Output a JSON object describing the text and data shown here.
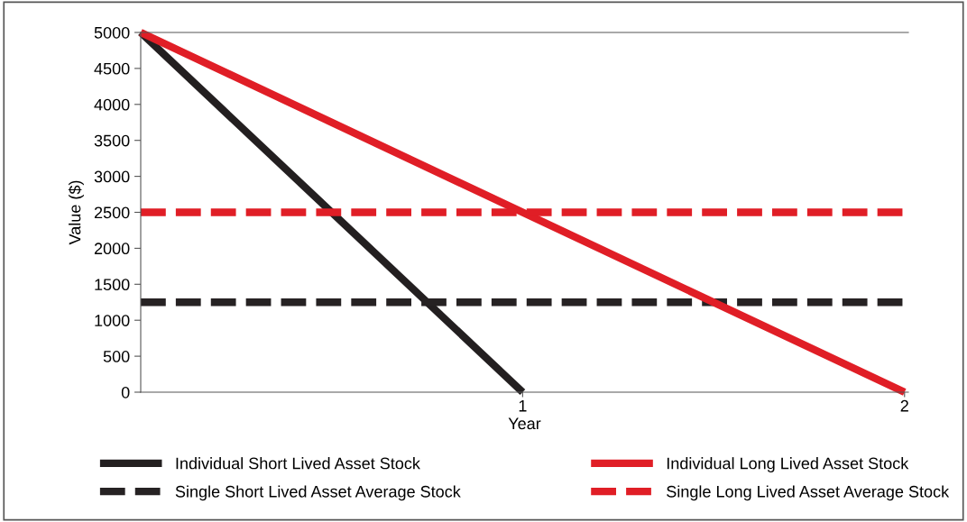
{
  "chart_data": {
    "type": "line",
    "xlabel": "Year",
    "ylabel": "Value ($)",
    "xlim": [
      0,
      2.01
    ],
    "xticks": [
      1,
      2
    ],
    "ylim": [
      0,
      5000
    ],
    "yticks": [
      0,
      500,
      1000,
      1500,
      2000,
      2500,
      3000,
      3500,
      4000,
      4500,
      5000
    ],
    "grid": false,
    "legend": "bottom",
    "marker": "none",
    "series": [
      {
        "name": "Individual Short Lived Asset Stock",
        "color": "#231f20",
        "x": [
          0,
          1
        ],
        "values": [
          5000,
          0
        ],
        "line_style": "solid"
      },
      {
        "name": "Single Short Lived Asset Average Stock",
        "color": "#262223",
        "x": [
          0,
          2
        ],
        "values": [
          1250,
          1250
        ],
        "line_style": "dashed"
      },
      {
        "name": "Individual Long Lived Asset Stock",
        "color": "#e01e26",
        "x": [
          0,
          2
        ],
        "values": [
          5000,
          0
        ],
        "line_style": "solid"
      },
      {
        "name": "Single Long Lived Asset Average Stock",
        "color": "#e01e26",
        "x": [
          0,
          2
        ],
        "values": [
          2500,
          2500
        ],
        "line_style": "dashed"
      }
    ]
  }
}
